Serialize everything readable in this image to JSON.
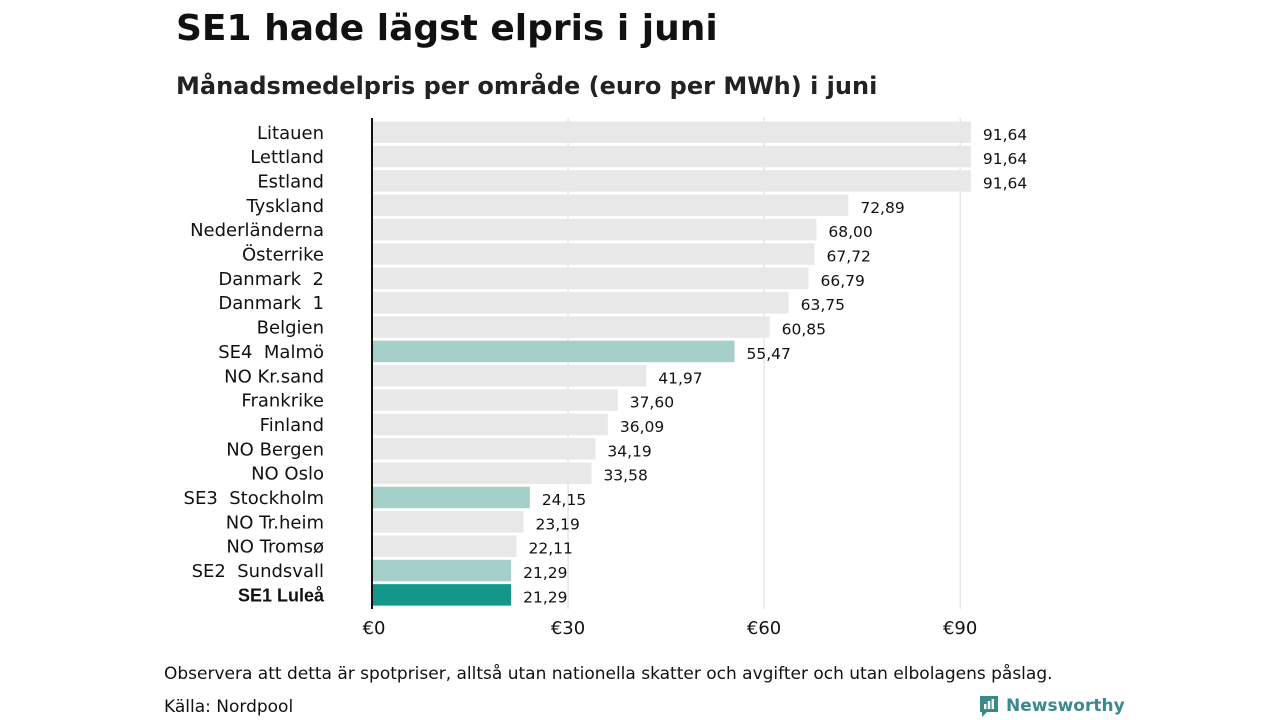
{
  "header": {
    "title": "SE1 hade lägst elpris i juni",
    "subtitle": "Månadsmedelpris per område (euro per MWh) i juni"
  },
  "footer": {
    "note": "Observera att detta är spotpriser, alltså utan nationella skatter och avgifter och utan elbolagens påslag.",
    "source": "Källa: Nordpool",
    "brand": "Newsworthy"
  },
  "colors": {
    "default_bar": "#e8e8e8",
    "se_bar": "#a5d0c9",
    "highlight_bar": "#12978a",
    "axis": "#111111",
    "grid": "#d9d9d9",
    "brand": "#3a8a8c"
  },
  "chart_data": {
    "type": "bar",
    "orientation": "horizontal",
    "title": "SE1 hade lägst elpris i juni",
    "subtitle": "Månadsmedelpris per område (euro per MWh) i juni",
    "xlabel": "",
    "ylabel": "",
    "xlim": [
      0,
      100
    ],
    "grid": true,
    "xticks": [
      {
        "value": 0,
        "label": "€0"
      },
      {
        "value": 30,
        "label": "€30"
      },
      {
        "value": 60,
        "label": "€60"
      },
      {
        "value": 90,
        "label": "€90"
      }
    ],
    "bars": [
      {
        "category": "Litauen",
        "value": 91.64,
        "label": "91,64",
        "group": "default"
      },
      {
        "category": "Lettland",
        "value": 91.64,
        "label": "91,64",
        "group": "default"
      },
      {
        "category": "Estland",
        "value": 91.64,
        "label": "91,64",
        "group": "default"
      },
      {
        "category": "Tyskland",
        "value": 72.89,
        "label": "72,89",
        "group": "default"
      },
      {
        "category": "Nederländerna",
        "value": 68.0,
        "label": "68,00",
        "group": "default"
      },
      {
        "category": "Österrike",
        "value": 67.72,
        "label": "67,72",
        "group": "default"
      },
      {
        "category": "Danmark  2",
        "value": 66.79,
        "label": "66,79",
        "group": "default"
      },
      {
        "category": "Danmark  1",
        "value": 63.75,
        "label": "63,75",
        "group": "default"
      },
      {
        "category": "Belgien",
        "value": 60.85,
        "label": "60,85",
        "group": "default"
      },
      {
        "category": "SE4  Malmö",
        "value": 55.47,
        "label": "55,47",
        "group": "se"
      },
      {
        "category": "NO Kr.sand",
        "value": 41.97,
        "label": "41,97",
        "group": "default"
      },
      {
        "category": "Frankrike",
        "value": 37.6,
        "label": "37,60",
        "group": "default"
      },
      {
        "category": "Finland",
        "value": 36.09,
        "label": "36,09",
        "group": "default"
      },
      {
        "category": "NO Bergen",
        "value": 34.19,
        "label": "34,19",
        "group": "default"
      },
      {
        "category": "NO Oslo",
        "value": 33.58,
        "label": "33,58",
        "group": "default"
      },
      {
        "category": "SE3  Stockholm",
        "value": 24.15,
        "label": "24,15",
        "group": "se"
      },
      {
        "category": "NO Tr.heim",
        "value": 23.19,
        "label": "23,19",
        "group": "default"
      },
      {
        "category": "NO Tromsø",
        "value": 22.11,
        "label": "22,11",
        "group": "default"
      },
      {
        "category": "SE2  Sundsvall",
        "value": 21.29,
        "label": "21,29",
        "group": "se"
      },
      {
        "category": "SE1 Luleå",
        "value": 21.29,
        "label": "21,29",
        "group": "highlight"
      }
    ]
  }
}
